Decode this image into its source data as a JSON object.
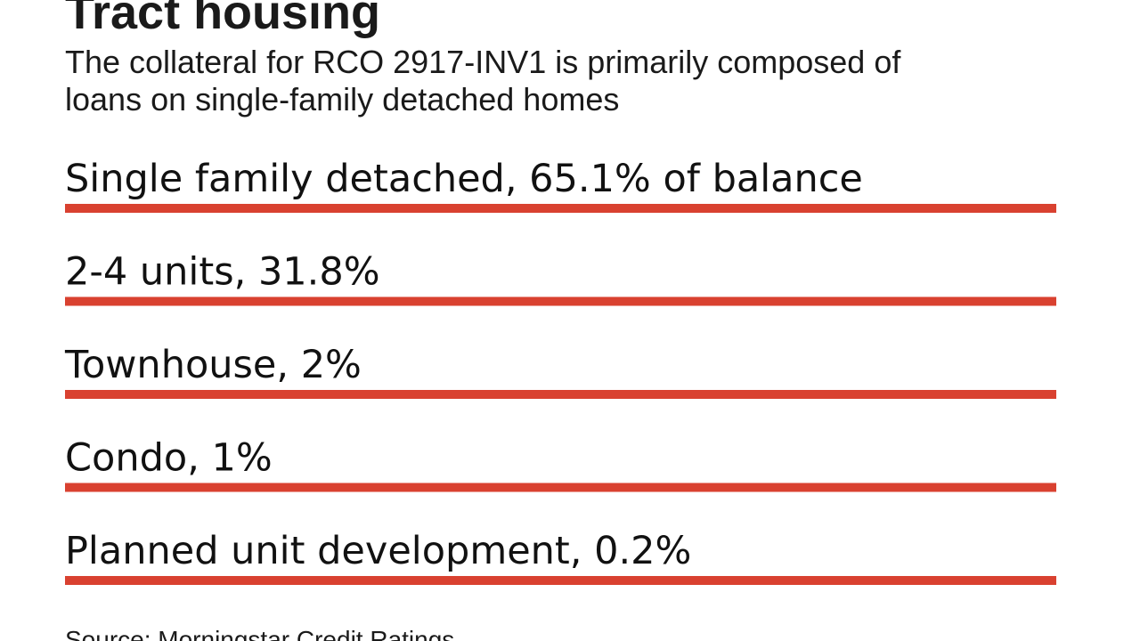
{
  "header": {
    "title": "Tract housing",
    "subtitle": [
      "The collateral for RCO 2917-INV1 is primarily composed of",
      "loans on single-family detached homes"
    ]
  },
  "items": [
    {
      "label": "Single family detached, 65.1% of balance"
    },
    {
      "label": "2-4 units, 31.8%"
    },
    {
      "label": "Townhouse, 2%"
    },
    {
      "label": "Condo, 1%"
    },
    {
      "label": "Planned unit development, 0.2%"
    }
  ],
  "source": "Source: Morningstar Credit Ratings"
}
